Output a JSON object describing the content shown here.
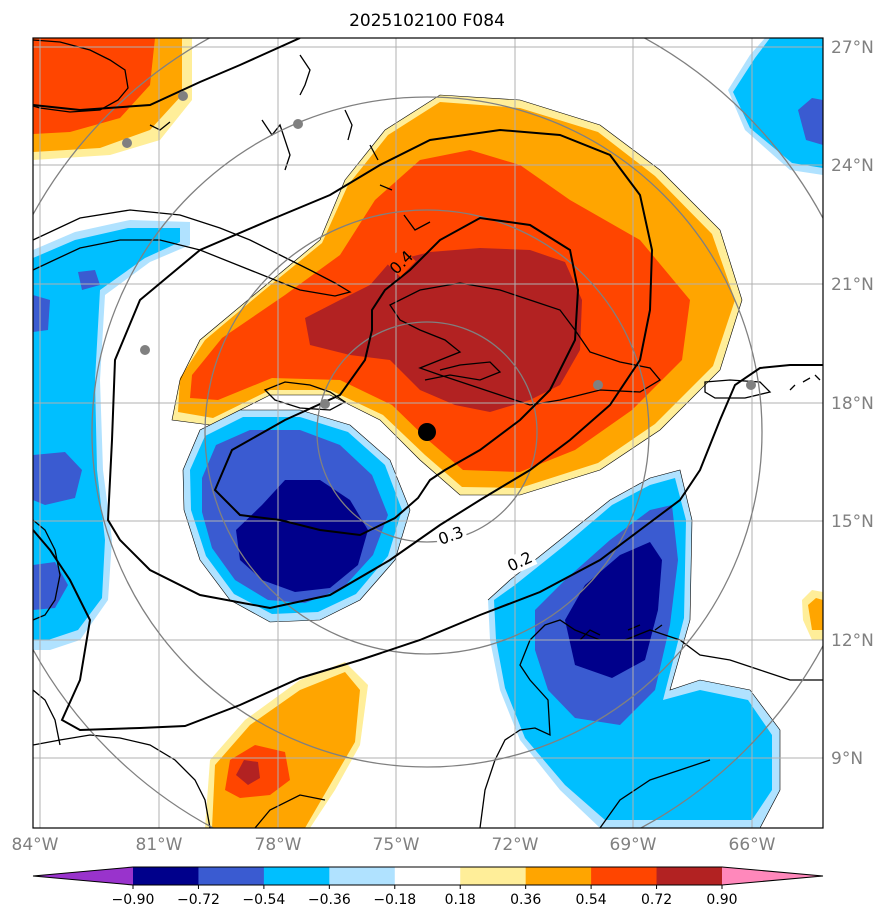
{
  "title": "2025102100 F084",
  "map": {
    "lat_ticks": [
      "27°N",
      "24°N",
      "21°N",
      "18°N",
      "15°N",
      "12°N",
      "9°N"
    ],
    "lon_ticks": [
      "84°W",
      "81°W",
      "78°W",
      "75°W",
      "72°W",
      "69°W",
      "66°W"
    ],
    "contour_labels": [
      "0.4",
      "0.3",
      "0.2"
    ],
    "center_marker": "storm-center"
  },
  "colorbar": {
    "ticks": [
      "−0.90",
      "−0.72",
      "−0.54",
      "−0.36",
      "−0.18",
      "0.18",
      "0.36",
      "0.54",
      "0.72",
      "0.90"
    ],
    "colors": [
      "#9933cc",
      "#00008b",
      "#3a5bd1",
      "#00bfff",
      "#b0e2ff",
      "#ffffff",
      "#ffee99",
      "#ffa500",
      "#ff4500",
      "#b22222",
      "#ff88bb"
    ]
  }
}
